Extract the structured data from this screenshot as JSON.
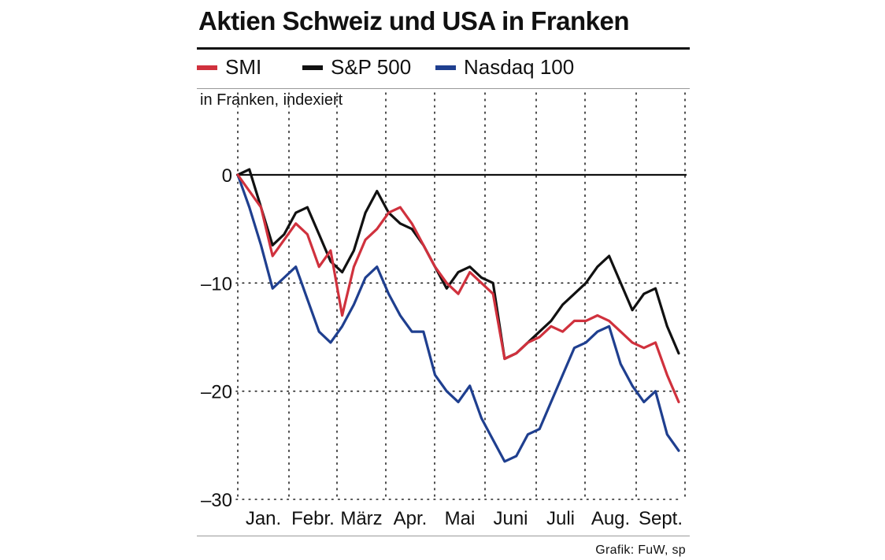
{
  "header": {
    "title": "Aktien Schweiz und USA in Franken",
    "unit_note": "in Franken, indexiert"
  },
  "footer": {
    "source": "Grafik: FuW, sp"
  },
  "colors": {
    "SMI": "#d0313d",
    "S&P 500": "#111111",
    "Nasdaq 100": "#1f3f8f"
  },
  "chart_data": {
    "type": "line",
    "title": "Aktien Schweiz und USA in Franken",
    "ylabel": "in Franken, indexiert",
    "xlabel": "",
    "x_unit": "week",
    "ylim": [
      -30,
      3
    ],
    "yticks": [
      0,
      -10,
      -20,
      -30
    ],
    "ytick_labels": [
      "0",
      "–10",
      "–20",
      "–30"
    ],
    "xlim": [
      0,
      38
    ],
    "month_labels": [
      "Jan.",
      "Febr.",
      "März",
      "Apr.",
      "Mai",
      "Juni",
      "Juli",
      "Aug.",
      "Sept."
    ],
    "month_starts": [
      0,
      4.5,
      8.5,
      12.5,
      17,
      21,
      25,
      29.5,
      34
    ],
    "grid": "dotted vertical month separators, dotted horizontal at -10, -20, -30; solid zero line",
    "legend_position": "top",
    "x": [
      0,
      1,
      2,
      3,
      4,
      5,
      6,
      7,
      8,
      9,
      10,
      11,
      12,
      13,
      14,
      15,
      16,
      17,
      18,
      19,
      20,
      21,
      22,
      23,
      24,
      25,
      26,
      27,
      28,
      29,
      30,
      31,
      32,
      33,
      34,
      35,
      36,
      37,
      38
    ],
    "series": [
      {
        "name": "SMI",
        "values": [
          0,
          -1.5,
          -3,
          -7.5,
          -6,
          -4.5,
          -5.5,
          -8.5,
          -7,
          -13,
          -8.5,
          -6,
          -5,
          -3.5,
          -3,
          -4.5,
          -6.5,
          -8.5,
          -10,
          -11,
          -9,
          -10,
          -11,
          -17,
          -16.5,
          -15.5,
          -15,
          -14,
          -14.5,
          -13.5,
          -13.5,
          -13,
          -13.5,
          -14.5,
          -15.5,
          -16,
          -15.5,
          -18.5,
          -21
        ]
      },
      {
        "name": "S&P 500",
        "values": [
          0,
          0.5,
          -3,
          -6.5,
          -5.5,
          -3.5,
          -3,
          -5.5,
          -8,
          -9,
          -7,
          -3.5,
          -1.5,
          -3.5,
          -4.5,
          -5,
          -6.5,
          -8.5,
          -10.5,
          -9,
          -8.5,
          -9.5,
          -10,
          -17,
          -16.5,
          -15.5,
          -14.5,
          -13.5,
          -12,
          -11,
          -10,
          -8.5,
          -7.5,
          -10,
          -12.5,
          -11,
          -10.5,
          -14,
          -16.5
        ]
      },
      {
        "name": "Nasdaq 100",
        "values": [
          0,
          -3,
          -6.5,
          -10.5,
          -9.5,
          -8.5,
          -11.5,
          -14.5,
          -15.5,
          -14,
          -12,
          -9.5,
          -8.5,
          -11,
          -13,
          -14.5,
          -14.5,
          -18.5,
          -20,
          -21,
          -19.5,
          -22.5,
          -24.5,
          -26.5,
          -26,
          -24,
          -23.5,
          -21,
          -18.5,
          -16,
          -15.5,
          -14.5,
          -14,
          -17.5,
          -19.5,
          -21,
          -20,
          -24,
          -25.5
        ]
      }
    ]
  }
}
